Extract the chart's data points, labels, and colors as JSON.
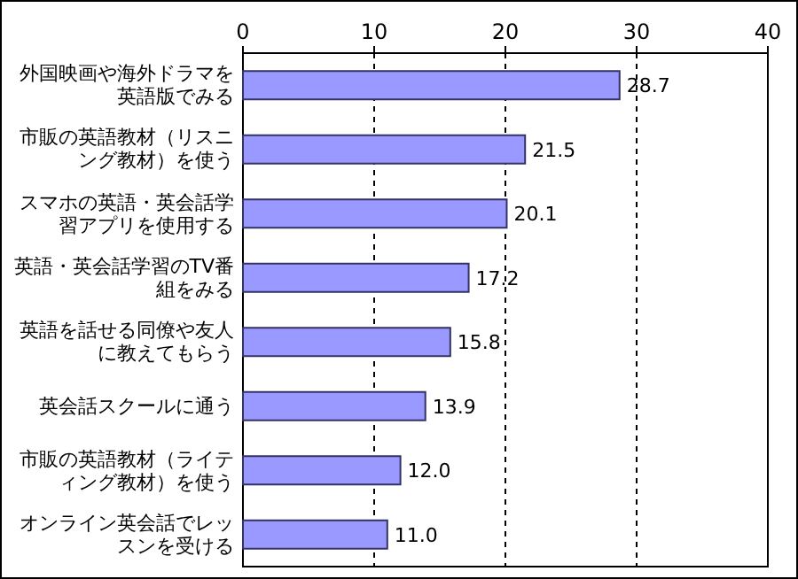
{
  "chart_data": {
    "type": "bar",
    "orientation": "horizontal",
    "categories": [
      "外国映画や海外ドラマを英語版でみる",
      "市販の英語教材（リスニング教材）を使う",
      "スマホの英語・英会話学習アプリを使用する",
      "英語・英会話学習のTV番組をみる",
      "英語を話せる同僚や友人に教えてもらう",
      "英会話スクールに通う",
      "市販の英語教材（ライティング教材）を使う",
      "オンライン英会話でレッスンを受ける"
    ],
    "values": [
      28.7,
      21.5,
      20.1,
      17.2,
      15.8,
      13.9,
      12.0,
      11.0
    ],
    "value_labels": [
      "28.7",
      "21.5",
      "20.1",
      "17.2",
      "15.8",
      "13.9",
      "12.0",
      "11.0"
    ],
    "color": "#9999ff",
    "xlim": [
      0,
      40
    ],
    "xticks": [
      0,
      10,
      20,
      30,
      40
    ],
    "grid": "x"
  }
}
